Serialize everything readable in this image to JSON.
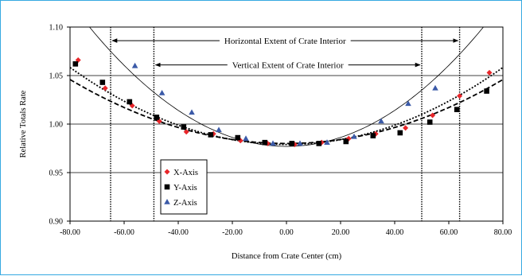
{
  "chart_data": {
    "type": "scatter",
    "xlabel": "Distance from Crate Center (cm)",
    "ylabel": "Relative Totals Rate",
    "xlim": [
      -80,
      80
    ],
    "ylim": [
      0.9,
      1.1
    ],
    "x_ticks": [
      -80,
      -60,
      -40,
      -20,
      0,
      20,
      40,
      60,
      80
    ],
    "x_tick_labels": [
      "-80.00",
      "-60.00",
      "-40.00",
      "-20.00",
      "0.00",
      "20.00",
      "40.00",
      "60.00",
      "80.00"
    ],
    "y_ticks": [
      0.9,
      0.95,
      1.0,
      1.05,
      1.1
    ],
    "y_tick_labels": [
      "0.90",
      "0.95",
      "1.00",
      "1.05",
      "1.10"
    ],
    "grid": "horizontal",
    "legend_position": "lower-left",
    "series": [
      {
        "name": "X-Axis",
        "marker": "diamond",
        "color": "#e8262a",
        "fit_line": "dotted",
        "points": [
          [
            -77,
            1.066
          ],
          [
            -67,
            1.037
          ],
          [
            -57,
            1.019
          ],
          [
            -47,
            1.003
          ],
          [
            -37,
            0.992
          ],
          [
            -27,
            0.99
          ],
          [
            -17,
            0.983
          ],
          [
            -7,
            0.98
          ],
          [
            3,
            0.979
          ],
          [
            13,
            0.981
          ],
          [
            23,
            0.985
          ],
          [
            33,
            0.99
          ],
          [
            44,
            0.996
          ],
          [
            54,
            1.009
          ],
          [
            64,
            1.029
          ],
          [
            75,
            1.053
          ]
        ]
      },
      {
        "name": "Y-Axis",
        "marker": "square",
        "color": "#000000",
        "fit_line": "dashed",
        "points": [
          [
            -78,
            1.062
          ],
          [
            -68,
            1.043
          ],
          [
            -58,
            1.023
          ],
          [
            -48,
            1.007
          ],
          [
            -38,
            0.997
          ],
          [
            -28,
            0.989
          ],
          [
            -18,
            0.986
          ],
          [
            -8,
            0.981
          ],
          [
            2,
            0.98
          ],
          [
            12,
            0.98
          ],
          [
            22,
            0.982
          ],
          [
            32,
            0.988
          ],
          [
            42,
            0.991
          ],
          [
            53,
            1.002
          ],
          [
            63,
            1.015
          ],
          [
            74,
            1.034
          ]
        ]
      },
      {
        "name": "Z-Axis",
        "marker": "triangle",
        "color": "#3b5aa8",
        "fit_line": "solid",
        "points": [
          [
            -56,
            1.06
          ],
          [
            -46,
            1.032
          ],
          [
            -35,
            1.012
          ],
          [
            -25,
            0.994
          ],
          [
            -15,
            0.985
          ],
          [
            -5,
            0.98
          ],
          [
            5,
            0.98
          ],
          [
            15,
            0.981
          ],
          [
            25,
            0.987
          ],
          [
            35,
            1.003
          ],
          [
            45,
            1.021
          ],
          [
            55,
            1.037
          ]
        ]
      }
    ],
    "fits": {
      "X-Axis": {
        "vertex_x": 0,
        "vertex_y": 0.979,
        "a": 1.24e-05
      },
      "Y-Axis": {
        "vertex_x": 0,
        "vertex_y": 0.98,
        "a": 1.03e-05
      },
      "Z-Axis": {
        "vertex_x": 0,
        "vertex_y": 0.977,
        "a": 2.32e-05
      }
    },
    "annotations": [
      {
        "text": "Horizontal Extent of Crate Interior",
        "x_from": -65,
        "x_to": 64,
        "y": 1.086
      },
      {
        "text": "Vertical Extent of Crate Interior",
        "x_from": -49,
        "x_to": 50,
        "y": 1.061
      }
    ],
    "vertical_lines": [
      -65,
      -49,
      50,
      64
    ]
  }
}
